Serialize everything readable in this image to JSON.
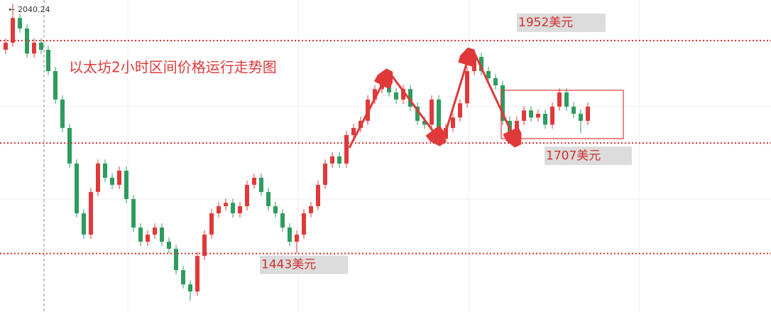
{
  "chart_data": {
    "type": "candlestick",
    "title": "以太坊2小时区间价格运行走势图",
    "max_label": 2040.24,
    "ylim": [
      1303,
      2049
    ],
    "up_color": "#e0393a",
    "down_color": "#2e9b5f",
    "levels": [
      {
        "value": 1952,
        "label": "1952美元"
      },
      {
        "value": 1707,
        "label": "1707美元"
      },
      {
        "value": 1443,
        "label": "1443美元"
      }
    ],
    "open": [
      1930,
      1947,
      2006,
      1981,
      1921,
      1947,
      1930,
      1879,
      1811,
      1743,
      1658,
      1539,
      1488,
      1590,
      1658,
      1624,
      1607,
      1641,
      1573,
      1505,
      1471,
      1488,
      1505,
      1471,
      1454,
      1403,
      1369,
      1352,
      1437,
      1488,
      1539,
      1556,
      1564,
      1539,
      1556,
      1607,
      1624,
      1590,
      1556,
      1539,
      1505,
      1471,
      1488,
      1539,
      1556,
      1607,
      1658,
      1675,
      1658,
      1726,
      1743,
      1760,
      1811,
      1836,
      1862,
      1828,
      1811,
      1836,
      1794,
      1760,
      1751,
      1811,
      1717,
      1743,
      1768,
      1802,
      1879,
      1913,
      1879,
      1862,
      1845,
      1760,
      1734,
      1760,
      1785,
      1768,
      1777,
      1751,
      1794,
      1828,
      1794,
      1777,
      1760
    ],
    "high": [
      1957,
      2040.24,
      2016,
      1991,
      1957,
      1957,
      1940,
      1889,
      1821,
      1753,
      1668,
      1549,
      1600,
      1668,
      1668,
      1634,
      1651,
      1651,
      1583,
      1515,
      1498,
      1515,
      1515,
      1481,
      1464,
      1413,
      1379,
      1447,
      1498,
      1549,
      1566,
      1574,
      1574,
      1566,
      1617,
      1634,
      1634,
      1600,
      1566,
      1549,
      1515,
      1498,
      1549,
      1566,
      1617,
      1668,
      1685,
      1685,
      1736,
      1753,
      1770,
      1821,
      1846,
      1872,
      1872,
      1838,
      1846,
      1846,
      1804,
      1770,
      1821,
      1821,
      1753,
      1778,
      1812,
      1889,
      1923,
      1923,
      1889,
      1872,
      1855,
      1770,
      1770,
      1795,
      1795,
      1787,
      1787,
      1804,
      1838,
      1838,
      1804,
      1787,
      1804
    ],
    "low": [
      1920,
      1937,
      1971,
      1911,
      1911,
      1920,
      1869,
      1801,
      1733,
      1648,
      1529,
      1478,
      1478,
      1580,
      1614,
      1597,
      1597,
      1563,
      1495,
      1461,
      1461,
      1478,
      1461,
      1444,
      1393,
      1359,
      1330,
      1342,
      1427,
      1478,
      1529,
      1546,
      1529,
      1529,
      1546,
      1597,
      1580,
      1546,
      1529,
      1495,
      1461,
      1443,
      1478,
      1529,
      1546,
      1597,
      1648,
      1648,
      1648,
      1716,
      1733,
      1750,
      1801,
      1826,
      1818,
      1801,
      1801,
      1784,
      1750,
      1741,
      1741,
      1707,
      1707,
      1733,
      1758,
      1792,
      1869,
      1869,
      1852,
      1835,
      1750,
      1724,
      1724,
      1750,
      1758,
      1758,
      1741,
      1741,
      1784,
      1784,
      1767,
      1731,
      1750
    ],
    "close": [
      1947,
      2006,
      1981,
      1921,
      1947,
      1930,
      1879,
      1811,
      1743,
      1658,
      1539,
      1488,
      1590,
      1658,
      1624,
      1607,
      1641,
      1573,
      1505,
      1471,
      1488,
      1505,
      1471,
      1454,
      1403,
      1369,
      1352,
      1437,
      1488,
      1539,
      1556,
      1564,
      1539,
      1556,
      1607,
      1624,
      1590,
      1556,
      1539,
      1505,
      1471,
      1488,
      1539,
      1556,
      1607,
      1658,
      1675,
      1658,
      1726,
      1743,
      1760,
      1811,
      1836,
      1862,
      1828,
      1811,
      1836,
      1794,
      1760,
      1751,
      1811,
      1717,
      1743,
      1768,
      1802,
      1879,
      1913,
      1879,
      1862,
      1845,
      1760,
      1734,
      1760,
      1785,
      1768,
      1777,
      1751,
      1794,
      1828,
      1794,
      1777,
      1760,
      1794
    ]
  }
}
